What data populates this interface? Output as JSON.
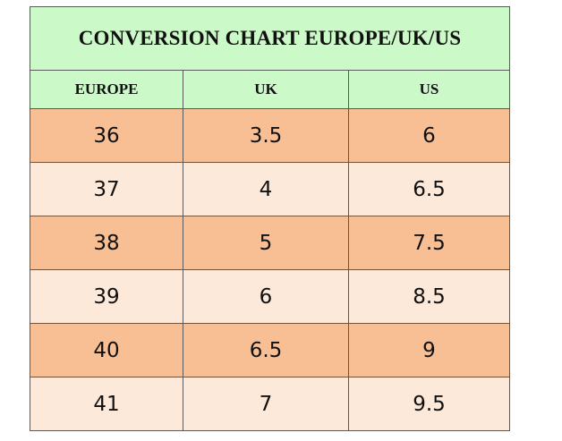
{
  "title": "CONVERSION CHART EUROPE/UK/US",
  "headers": [
    "EUROPE",
    "UK",
    "US"
  ],
  "rows": [
    [
      "36",
      "3.5",
      "6"
    ],
    [
      "37",
      "4",
      "6.5"
    ],
    [
      "38",
      "5",
      "7.5"
    ],
    [
      "39",
      "6",
      "8.5"
    ],
    [
      "40",
      "6.5",
      "9"
    ],
    [
      "41",
      "7",
      "9.5"
    ]
  ],
  "colors": {
    "header_bg": "#ccf9c8",
    "row_dark_bg": "#f9bf94",
    "row_light_bg": "#fde9d9",
    "border": "#5a5a5a"
  }
}
